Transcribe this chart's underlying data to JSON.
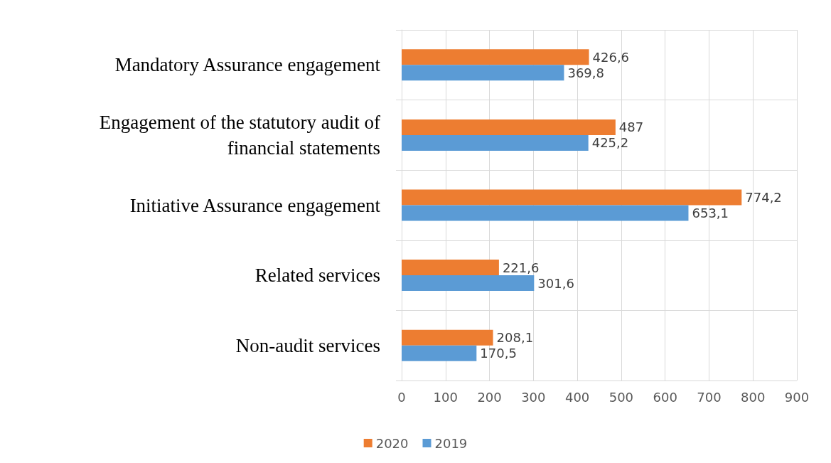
{
  "chart_data": {
    "type": "bar",
    "orientation": "horizontal",
    "categories": [
      "Mandatory Assurance engagement",
      "Engagement of the statutory audit of\nfinancial statements",
      "Initiative Assurance engagement",
      "Related services",
      "Non-audit services"
    ],
    "series": [
      {
        "name": "2020",
        "color": "#ed7d31",
        "values": [
          426.6,
          487,
          774.2,
          221.6,
          208.1
        ],
        "value_labels": [
          "426,6",
          "487",
          "774,2",
          "221,6",
          "208,1"
        ]
      },
      {
        "name": "2019",
        "color": "#5b9bd5",
        "values": [
          369.8,
          425.2,
          653.1,
          301.6,
          170.5
        ],
        "value_labels": [
          "369,8",
          "425,2",
          "653,1",
          "301,6",
          "170,5"
        ]
      }
    ],
    "xlim": [
      0,
      900
    ],
    "xticks": [
      0,
      100,
      200,
      300,
      400,
      500,
      600,
      700,
      800,
      900
    ],
    "grid": true,
    "legend": "bottom"
  }
}
